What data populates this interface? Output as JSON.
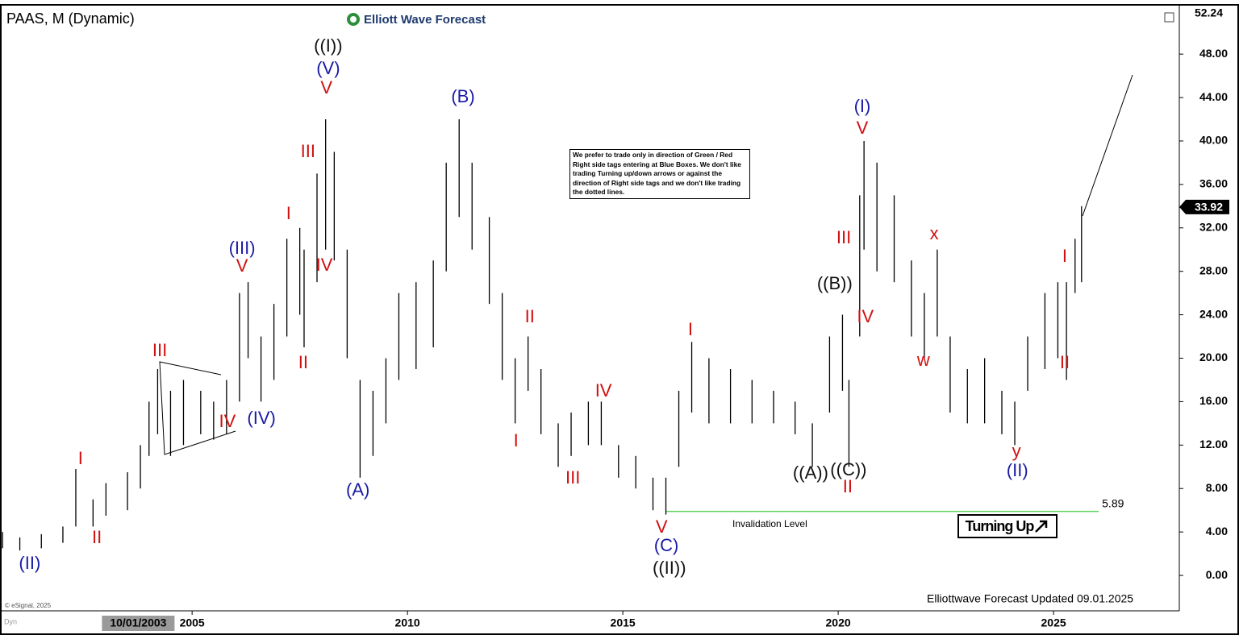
{
  "chart_data": {
    "type": "ohlc",
    "title": "PAAS, M (Dynamic)",
    "brand": "Elliott Wave Forecast",
    "note": "We prefer to trade only in direction of Green / Red Right side tags entering at Blue Boxes. We don't like trading Turning up/down arrows or against the direction of Right side tags and we don't like trading the dotted lines.",
    "footer": "Elliottwave Forecast Updated 09.01.2025",
    "copyright": "© eSignal, 2025",
    "corner_label": "Dyn",
    "signal": "Turning Up",
    "invalidation_label": "Invalidation Level",
    "invalidation_level": 5.89,
    "invalidation_start": 2016.01,
    "invalidation_end": 2026.05,
    "xlim": [
      2000.54,
      2027.92
    ],
    "ylim": [
      -3.26,
      52.24
    ],
    "xticks": [
      2005,
      2010,
      2015,
      2020,
      2025
    ],
    "cursor_label": {
      "value": 2003.75,
      "label": "10/01/2003"
    },
    "top_marker": {
      "value": 52.24,
      "label": "52.24"
    },
    "last_price": {
      "value": 33.92,
      "label": "33.92"
    },
    "yticks": [
      {
        "value": 0,
        "label": "0.00"
      },
      {
        "value": 4,
        "label": "4.00"
      },
      {
        "value": 8,
        "label": "8.00"
      },
      {
        "value": 12,
        "label": "12.00"
      },
      {
        "value": 16,
        "label": "16.00"
      },
      {
        "value": 20,
        "label": "20.00"
      },
      {
        "value": 24,
        "label": "24.00"
      },
      {
        "value": 28,
        "label": "28.00"
      },
      {
        "value": 32,
        "label": "32.00"
      },
      {
        "value": 36,
        "label": "36.00"
      },
      {
        "value": 40,
        "label": "40.00"
      },
      {
        "value": 44,
        "label": "44.00"
      },
      {
        "value": 48,
        "label": "48.00"
      }
    ],
    "x": [
      2000.6,
      2001.0,
      2001.5,
      2002.0,
      2002.3,
      2002.7,
      2003.0,
      2003.5,
      2003.8,
      2004.0,
      2004.2,
      2004.5,
      2004.8,
      2005.2,
      2005.5,
      2005.8,
      2006.1,
      2006.3,
      2006.6,
      2006.9,
      2007.2,
      2007.5,
      2007.6,
      2007.9,
      2008.1,
      2008.3,
      2008.6,
      2008.9,
      2009.2,
      2009.5,
      2009.8,
      2010.2,
      2010.6,
      2010.9,
      2011.2,
      2011.5,
      2011.9,
      2012.2,
      2012.5,
      2012.8,
      2013.1,
      2013.5,
      2013.8,
      2014.2,
      2014.5,
      2014.9,
      2015.3,
      2015.7,
      2016.0,
      2016.3,
      2016.6,
      2017.0,
      2017.5,
      2018.0,
      2018.5,
      2019.0,
      2019.4,
      2019.8,
      2020.1,
      2020.25,
      2020.5,
      2020.6,
      2020.9,
      2021.3,
      2021.7,
      2022.0,
      2022.3,
      2022.6,
      2023.0,
      2023.4,
      2023.8,
      2024.1,
      2024.4,
      2024.8,
      2025.1,
      2025.3,
      2025.5,
      2025.65
    ],
    "high": [
      4,
      3.5,
      3.8,
      4.5,
      9.8,
      7,
      8.5,
      9.5,
      12,
      16,
      19,
      17,
      18,
      17,
      16,
      18,
      26,
      27,
      22,
      25,
      31,
      32,
      30,
      37,
      42,
      39,
      30,
      18,
      17,
      20,
      26,
      27,
      29,
      38,
      42,
      38,
      33,
      26,
      20,
      22,
      19,
      14,
      15,
      16,
      16,
      12,
      11,
      9,
      9,
      17,
      21.5,
      20,
      19,
      18,
      17,
      16,
      14,
      22,
      24,
      18,
      35,
      40,
      38,
      35,
      29,
      26,
      30,
      22,
      19,
      20,
      17,
      16,
      22,
      26,
      27,
      27,
      31,
      34
    ],
    "low": [
      2.5,
      2.3,
      2.5,
      3,
      4.5,
      4.5,
      5.5,
      6,
      8,
      11,
      13,
      11,
      12,
      13,
      12.5,
      13,
      16,
      20,
      16,
      18,
      22,
      24,
      21,
      27,
      30,
      29,
      20,
      9,
      11,
      14,
      18,
      19,
      21,
      28,
      33,
      30,
      25,
      18,
      14,
      17,
      13,
      10,
      11,
      12,
      12,
      9,
      8,
      6,
      5.6,
      10,
      15,
      14,
      14,
      14,
      14,
      13,
      10,
      15,
      17,
      10,
      22,
      30,
      28,
      27,
      22,
      20,
      22,
      15,
      14,
      14,
      13,
      12,
      17,
      19,
      20,
      18,
      26,
      27
    ],
    "annotations": [
      {
        "text": "(II)",
        "x": 2001.23,
        "y": 1.04,
        "color": "#1a1aa6"
      },
      {
        "text": "I",
        "x": 2002.41,
        "y": 10.68,
        "color": "#d01010"
      },
      {
        "text": "II",
        "x": 2002.79,
        "y": 3.41,
        "color": "#d01010"
      },
      {
        "text": "III",
        "x": 2004.25,
        "y": 20.62,
        "color": "#d01010"
      },
      {
        "text": "IV",
        "x": 2005.82,
        "y": 14.1,
        "color": "#d01010"
      },
      {
        "text": "(IV)",
        "x": 2006.61,
        "y": 14.39,
        "color": "#1a1aa6"
      },
      {
        "text": "(III)",
        "x": 2006.16,
        "y": 30.04,
        "color": "#1a1aa6"
      },
      {
        "text": "V",
        "x": 2006.16,
        "y": 28.41,
        "color": "#d01010"
      },
      {
        "text": "I",
        "x": 2007.24,
        "y": 33.23,
        "color": "#d01010"
      },
      {
        "text": "II",
        "x": 2007.58,
        "y": 19.51,
        "color": "#d01010"
      },
      {
        "text": "III",
        "x": 2007.69,
        "y": 38.95,
        "color": "#d01010"
      },
      {
        "text": "IV",
        "x": 2008.07,
        "y": 28.49,
        "color": "#d01010"
      },
      {
        "text": "((I))",
        "x": 2008.16,
        "y": 48.66,
        "color": "#111111"
      },
      {
        "text": "(V)",
        "x": 2008.16,
        "y": 46.59,
        "color": "#1a1aa6"
      },
      {
        "text": "V",
        "x": 2008.12,
        "y": 44.81,
        "color": "#d01010"
      },
      {
        "text": "(A)",
        "x": 2008.85,
        "y": 7.79,
        "color": "#1a1aa6"
      },
      {
        "text": "(B)",
        "x": 2011.29,
        "y": 43.99,
        "color": "#1a1aa6"
      },
      {
        "text": "II",
        "x": 2012.84,
        "y": 23.74,
        "color": "#d01010"
      },
      {
        "text": "I",
        "x": 2012.52,
        "y": 12.31,
        "color": "#d01010"
      },
      {
        "text": "III",
        "x": 2013.84,
        "y": 8.9,
        "color": "#d01010"
      },
      {
        "text": "IV",
        "x": 2014.55,
        "y": 16.91,
        "color": "#d01010"
      },
      {
        "text": "I",
        "x": 2016.57,
        "y": 22.55,
        "color": "#d01010"
      },
      {
        "text": "V",
        "x": 2015.9,
        "y": 4.38,
        "color": "#d01010"
      },
      {
        "text": "(C)",
        "x": 2016.01,
        "y": 2.67,
        "color": "#1a1aa6"
      },
      {
        "text": "((II))",
        "x": 2016.08,
        "y": 0.59,
        "color": "#111111"
      },
      {
        "text": "((A))",
        "x": 2019.36,
        "y": 9.35,
        "color": "#111111"
      },
      {
        "text": "((B))",
        "x": 2019.92,
        "y": 26.78,
        "color": "#111111"
      },
      {
        "text": "((C))",
        "x": 2020.24,
        "y": 9.64,
        "color": "#111111"
      },
      {
        "text": "II",
        "x": 2020.22,
        "y": 8.09,
        "color": "#d01010"
      },
      {
        "text": "III",
        "x": 2020.13,
        "y": 31.01,
        "color": "#d01010"
      },
      {
        "text": "IV",
        "x": 2020.63,
        "y": 23.74,
        "color": "#d01010"
      },
      {
        "text": "(I)",
        "x": 2020.56,
        "y": 43.1,
        "color": "#1a1aa6"
      },
      {
        "text": "V",
        "x": 2020.56,
        "y": 41.1,
        "color": "#d01010"
      },
      {
        "text": "x",
        "x": 2022.23,
        "y": 31.38,
        "color": "#d01010"
      },
      {
        "text": "w",
        "x": 2021.98,
        "y": 19.73,
        "color": "#d01010"
      },
      {
        "text": "y",
        "x": 2024.14,
        "y": 11.35,
        "color": "#d01010"
      },
      {
        "text": "(II)",
        "x": 2024.16,
        "y": 9.57,
        "color": "#1a1aa6"
      },
      {
        "text": "I",
        "x": 2025.26,
        "y": 29.3,
        "color": "#d01010"
      },
      {
        "text": "II",
        "x": 2025.26,
        "y": 19.51,
        "color": "#d01010"
      }
    ]
  }
}
